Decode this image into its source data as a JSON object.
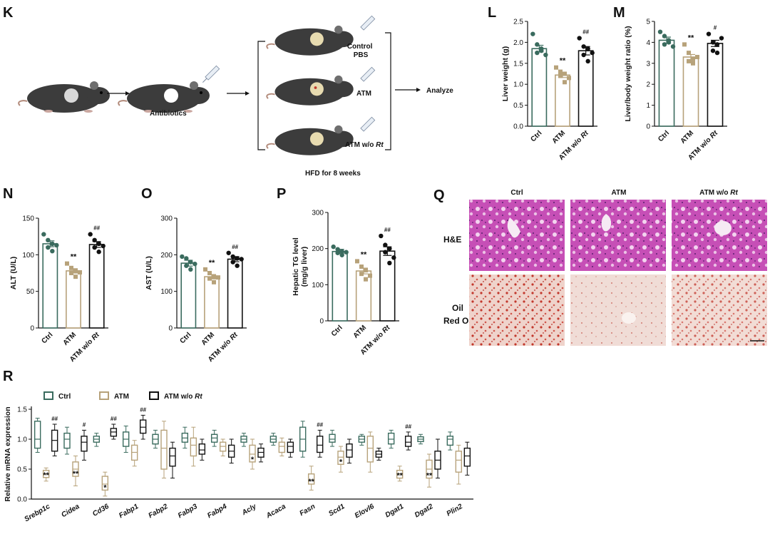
{
  "colors": {
    "ctrl": "#3a6b5e",
    "atm": "#b7a27a",
    "rt": "#111111",
    "he": "#c552b5",
    "oil": "#e8c2b8"
  },
  "panel_K": {
    "label": "K",
    "step_antibiotics": "Antibiotics",
    "arms": [
      "Control\nPBS",
      "ATM",
      "ATM w/o Rt"
    ],
    "analyze": "Analyze",
    "footer": "HFD for 8 weeks"
  },
  "panel_Q": {
    "label": "Q",
    "col_headers": [
      "Ctrl",
      "ATM",
      "ATM w/o Rt"
    ],
    "row_labels": [
      "H&E",
      "Oil\nRed O"
    ]
  },
  "panel_R": {
    "label": "R",
    "legend": [
      "Ctrl",
      "ATM",
      "ATM w/o Rt"
    ]
  },
  "chart_data": [
    {
      "id": "L",
      "type": "bar",
      "title": "",
      "xlabel": "",
      "ylabel": "Liver weight (g)",
      "categories": [
        "Ctrl",
        "ATM",
        "ATM w/o Rt"
      ],
      "ylim": [
        0,
        2.5
      ],
      "yticks": [
        0.0,
        0.5,
        1.0,
        1.5,
        2.0,
        2.5
      ],
      "values": [
        1.85,
        1.22,
        1.8
      ],
      "sem": [
        0.08,
        0.06,
        0.1
      ],
      "points": [
        [
          2.2,
          1.95,
          1.8,
          1.75,
          1.85,
          1.7
        ],
        [
          1.4,
          1.3,
          1.25,
          1.2,
          1.05,
          1.15
        ],
        [
          2.1,
          1.9,
          1.85,
          1.7,
          1.55,
          1.75
        ]
      ],
      "sig": [
        "",
        "**",
        "##"
      ]
    },
    {
      "id": "M",
      "type": "bar",
      "title": "",
      "xlabel": "",
      "ylabel": "Liver/body weight ratio (%)",
      "categories": [
        "Ctrl",
        "ATM",
        "ATM w/o Rt"
      ],
      "ylim": [
        0,
        5
      ],
      "yticks": [
        0,
        1,
        2,
        3,
        4,
        5
      ],
      "values": [
        4.1,
        3.3,
        3.95
      ],
      "sem": [
        0.15,
        0.12,
        0.15
      ],
      "points": [
        [
          4.5,
          4.3,
          4.0,
          3.9,
          4.1,
          3.8
        ],
        [
          3.9,
          3.5,
          3.2,
          3.1,
          3.0,
          3.3
        ],
        [
          4.4,
          4.0,
          3.9,
          3.6,
          3.5,
          4.2
        ]
      ],
      "sig": [
        "",
        "**",
        "#"
      ]
    },
    {
      "id": "N",
      "type": "bar",
      "title": "",
      "xlabel": "",
      "ylabel": "ALT (U/L)",
      "categories": [
        "Ctrl",
        "ATM",
        "ATM w/o Rt"
      ],
      "ylim": [
        0,
        150
      ],
      "yticks": [
        0,
        50,
        100,
        150
      ],
      "values": [
        115,
        78,
        114
      ],
      "sem": [
        4,
        3,
        4
      ],
      "points": [
        [
          128,
          120,
          115,
          110,
          105,
          113
        ],
        [
          88,
          82,
          78,
          75,
          70,
          76
        ],
        [
          128,
          120,
          115,
          110,
          104,
          112
        ]
      ],
      "sig": [
        "",
        "**",
        "##"
      ]
    },
    {
      "id": "O",
      "type": "bar",
      "title": "",
      "xlabel": "",
      "ylabel": "AST (U/L)",
      "categories": [
        "Ctrl",
        "ATM",
        "ATM w/o Rt"
      ],
      "ylim": [
        0,
        300
      ],
      "yticks": [
        0,
        100,
        200,
        300
      ],
      "values": [
        177,
        140,
        188
      ],
      "sem": [
        8,
        6,
        7
      ],
      "points": [
        [
          195,
          190,
          180,
          170,
          160,
          175
        ],
        [
          160,
          150,
          140,
          135,
          125,
          138
        ],
        [
          205,
          195,
          190,
          180,
          170,
          188
        ]
      ],
      "sig": [
        "",
        "**",
        "##"
      ]
    },
    {
      "id": "P",
      "type": "bar",
      "title": "",
      "xlabel": "",
      "ylabel": "Hepatic TG level\n(mg/g liver)",
      "categories": [
        "Ctrl",
        "ATM",
        "ATM w/o Rt"
      ],
      "ylim": [
        0,
        300
      ],
      "yticks": [
        0,
        100,
        200,
        300
      ],
      "values": [
        192,
        138,
        193
      ],
      "sem": [
        6,
        8,
        12
      ],
      "points": [
        [
          205,
          198,
          192,
          188,
          182,
          190
        ],
        [
          165,
          150,
          140,
          130,
          115,
          125
        ],
        [
          235,
          210,
          200,
          190,
          160,
          175
        ]
      ],
      "sig": [
        "",
        "**",
        "##"
      ]
    },
    {
      "id": "R",
      "type": "box",
      "title": "",
      "xlabel": "",
      "ylabel": "Relative mRNA expression",
      "series": [
        {
          "name": "Ctrl"
        },
        {
          "name": "ATM"
        },
        {
          "name": "ATM w/o Rt"
        }
      ],
      "ylim": [
        0,
        1.5
      ],
      "yticks": [
        0.0,
        0.5,
        1.0,
        1.5
      ],
      "categories": [
        "Srebp1c",
        "Cidea",
        "Cd36",
        "Fabp1",
        "Fabp2",
        "Fabp3",
        "Fabp4",
        "Acly",
        "Acaca",
        "Fasn",
        "Scd1",
        "Elovl6",
        "Dgat1",
        "Dgat2",
        "Plin2"
      ],
      "boxes": [
        [
          [
            0.78,
            0.85,
            1.0,
            1.3,
            1.35
          ],
          [
            0.3,
            0.36,
            0.42,
            0.48,
            0.52
          ],
          [
            0.72,
            0.8,
            0.98,
            1.15,
            1.25
          ]
        ],
        [
          [
            0.75,
            0.85,
            1.0,
            1.1,
            1.2
          ],
          [
            0.22,
            0.38,
            0.5,
            0.62,
            0.72
          ],
          [
            0.65,
            0.8,
            0.95,
            1.05,
            1.15
          ]
        ],
        [
          [
            0.88,
            0.95,
            1.0,
            1.05,
            1.1
          ],
          [
            0.05,
            0.15,
            0.25,
            0.38,
            0.45
          ],
          [
            1.0,
            1.05,
            1.12,
            1.18,
            1.25
          ]
        ],
        [
          [
            0.78,
            0.88,
            1.0,
            1.12,
            1.22
          ],
          [
            0.55,
            0.65,
            0.78,
            0.9,
            0.98
          ],
          [
            1.0,
            1.1,
            1.2,
            1.32,
            1.4
          ]
        ],
        [
          [
            0.85,
            0.92,
            1.0,
            1.08,
            1.15
          ],
          [
            0.35,
            0.5,
            0.85,
            1.15,
            1.3
          ],
          [
            0.35,
            0.55,
            0.72,
            0.85,
            0.95
          ]
        ],
        [
          [
            0.85,
            0.95,
            1.02,
            1.1,
            1.2
          ],
          [
            0.55,
            0.72,
            0.9,
            1.02,
            1.2
          ],
          [
            0.65,
            0.75,
            0.82,
            0.92,
            1.0
          ]
        ],
        [
          [
            0.88,
            0.95,
            1.02,
            1.08,
            1.15
          ],
          [
            0.72,
            0.8,
            0.88,
            0.95,
            1.0
          ],
          [
            0.6,
            0.7,
            0.8,
            0.9,
            1.0
          ]
        ],
        [
          [
            0.88,
            0.95,
            1.0,
            1.05,
            1.1
          ],
          [
            0.5,
            0.62,
            0.75,
            0.9,
            1.0
          ],
          [
            0.62,
            0.7,
            0.78,
            0.85,
            0.92
          ]
        ],
        [
          [
            0.9,
            0.95,
            1.0,
            1.05,
            1.1
          ],
          [
            0.72,
            0.78,
            0.88,
            0.95,
            1.02
          ],
          [
            0.7,
            0.78,
            0.88,
            0.95,
            1.0
          ]
        ],
        [
          [
            0.7,
            0.8,
            1.0,
            1.2,
            1.3
          ],
          [
            0.15,
            0.25,
            0.32,
            0.42,
            0.55
          ],
          [
            0.7,
            0.78,
            0.9,
            1.05,
            1.15
          ]
        ],
        [
          [
            0.88,
            0.95,
            1.0,
            1.08,
            1.15
          ],
          [
            0.45,
            0.58,
            0.7,
            0.8,
            0.88
          ],
          [
            0.6,
            0.7,
            0.82,
            0.92,
            1.0
          ]
        ],
        [
          [
            0.9,
            0.95,
            1.0,
            1.05,
            1.08
          ],
          [
            0.45,
            0.62,
            0.85,
            1.05,
            1.12
          ],
          [
            0.65,
            0.7,
            0.75,
            0.8,
            0.85
          ]
        ],
        [
          [
            0.85,
            0.92,
            1.0,
            1.1,
            1.15
          ],
          [
            0.3,
            0.35,
            0.42,
            0.48,
            0.55
          ],
          [
            0.82,
            0.88,
            0.95,
            1.05,
            1.12
          ]
        ],
        [
          [
            0.92,
            0.96,
            1.0,
            1.04,
            1.08
          ],
          [
            0.2,
            0.35,
            0.5,
            0.65,
            0.75
          ],
          [
            0.35,
            0.5,
            0.65,
            0.8,
            1.0
          ]
        ],
        [
          [
            0.82,
            0.9,
            1.0,
            1.05,
            1.12
          ],
          [
            0.25,
            0.45,
            0.65,
            0.8,
            0.9
          ],
          [
            0.4,
            0.55,
            0.72,
            0.85,
            0.95
          ]
        ]
      ],
      "sig": [
        [
          "",
          "**",
          "##"
        ],
        [
          "",
          "**",
          "#"
        ],
        [
          "",
          "*",
          "##"
        ],
        [
          "",
          "",
          "##"
        ],
        [
          "",
          "",
          ""
        ],
        [
          "",
          "",
          ""
        ],
        [
          "",
          "",
          ""
        ],
        [
          "",
          "*",
          ""
        ],
        [
          "",
          "",
          ""
        ],
        [
          "",
          "**",
          "##"
        ],
        [
          "",
          "*",
          ""
        ],
        [
          "",
          "",
          ""
        ],
        [
          "",
          "**",
          "##"
        ],
        [
          "",
          "**",
          ""
        ],
        [
          "",
          "",
          ""
        ]
      ]
    }
  ]
}
